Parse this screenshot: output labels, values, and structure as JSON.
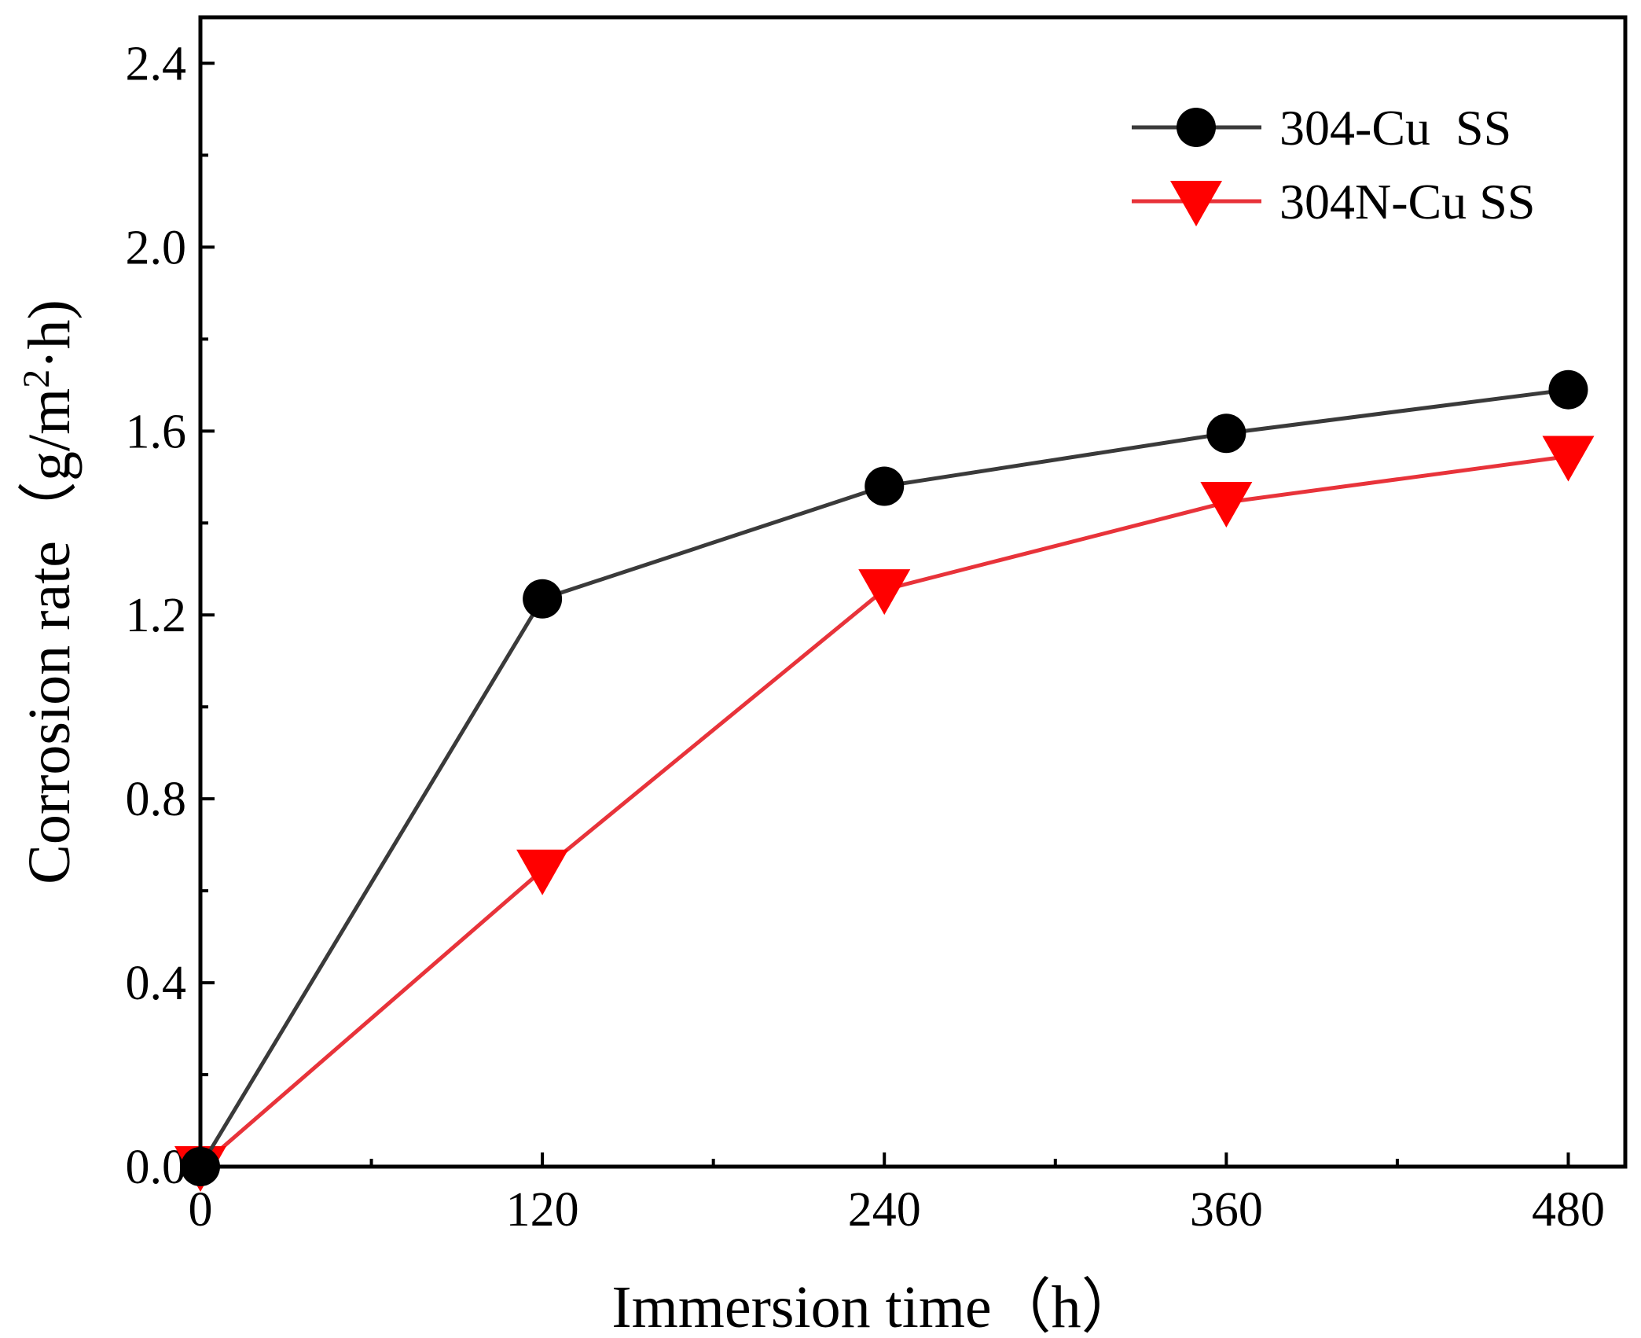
{
  "chart_data": {
    "type": "line",
    "title": "",
    "xlabel": "Immersion time（h）",
    "ylabel_prefix": "Corrosion rate（g/m",
    "ylabel_sup": "2",
    "ylabel_suffix": "·h)",
    "x": [
      0,
      120,
      240,
      360,
      480
    ],
    "xlim": [
      0,
      500
    ],
    "ylim": [
      0,
      2.5
    ],
    "xticks": [
      0,
      120,
      240,
      360,
      480
    ],
    "xtick_labels": [
      "0",
      "120",
      "240",
      "360",
      "480"
    ],
    "xminor": [
      60,
      180,
      300,
      420
    ],
    "yticks": [
      0,
      0.4,
      0.8,
      1.2,
      1.6,
      2.0,
      2.4
    ],
    "ytick_labels": [
      "0.0",
      "0.4",
      "0.8",
      "1.2",
      "1.6",
      "2.0",
      "2.4"
    ],
    "yminor": [
      0.2,
      0.6,
      1.0,
      1.4,
      1.8,
      2.2
    ],
    "grid": false,
    "legend_position": "top-right",
    "series": [
      {
        "name": "304-Cu  SS",
        "marker": "circle",
        "line_color": "#3a3a3a",
        "marker_color": "#000000",
        "values": [
          0.0,
          1.235,
          1.48,
          1.595,
          1.69
        ]
      },
      {
        "name": "304N-Cu SS",
        "marker": "triangle-down",
        "line_color": "#e8333a",
        "marker_color": "#ff0000",
        "values": [
          0.0,
          0.645,
          1.255,
          1.445,
          1.545
        ]
      }
    ]
  }
}
